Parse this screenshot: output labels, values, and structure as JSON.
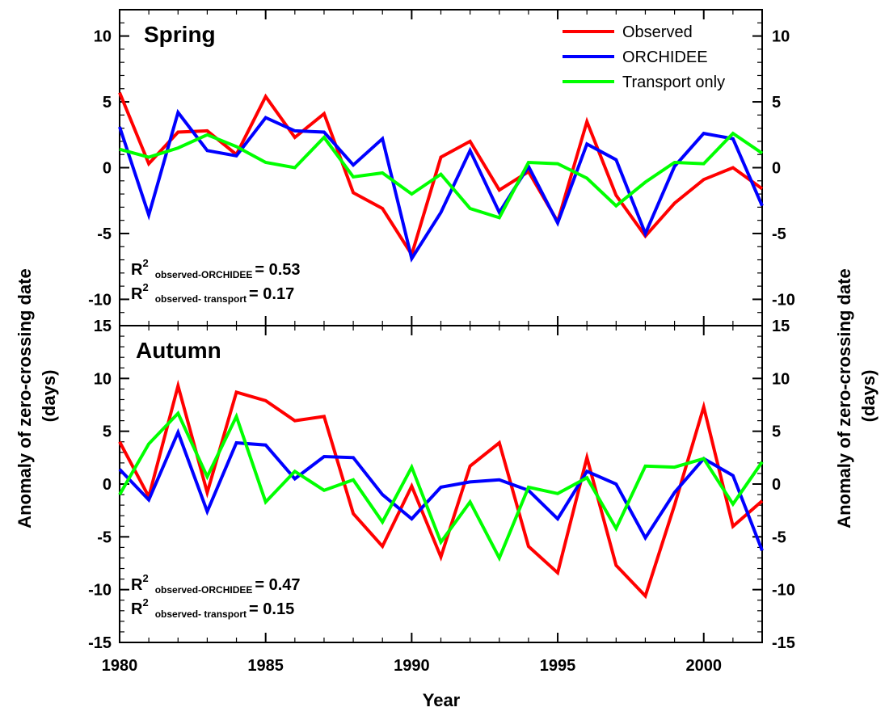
{
  "chart_data": {
    "type": "line",
    "x_label": "Year",
    "y_label_line1": "Anomaly of zero-crossing date",
    "y_label_line2": "(days)",
    "x": [
      1980,
      1981,
      1982,
      1983,
      1984,
      1985,
      1986,
      1987,
      1988,
      1989,
      1990,
      1991,
      1992,
      1993,
      1994,
      1995,
      1996,
      1997,
      1998,
      1999,
      2000,
      2001,
      2002
    ],
    "xlim": [
      1980,
      2002
    ],
    "x_ticks": [
      1980,
      1985,
      1990,
      1995,
      2000
    ],
    "legend": {
      "placement": "top-right",
      "entries": [
        {
          "label": "Observed",
          "color": "#ff0000"
        },
        {
          "label": "ORCHIDEE",
          "color": "#0000ff"
        },
        {
          "label": "Transport only",
          "color": "#00ff00"
        }
      ]
    },
    "panels": [
      {
        "title": "Spring",
        "ylim": [
          -12,
          12
        ],
        "y_ticks": [
          -10,
          -5,
          0,
          5,
          10
        ],
        "annotations": [
          {
            "prefix": "R",
            "sup": "2",
            "sub": "observed-ORCHIDEE",
            "value": "= 0.53"
          },
          {
            "prefix": "R",
            "sup": "2",
            "sub": "observed- transport",
            "value": "= 0.17"
          }
        ],
        "series": [
          {
            "name": "Observed",
            "color": "#ff0000",
            "values": [
              5.7,
              0.3,
              2.7,
              2.8,
              1.0,
              5.4,
              2.3,
              4.1,
              -1.9,
              -3.1,
              -6.6,
              0.8,
              2.0,
              -1.7,
              -0.3,
              -4.1,
              3.5,
              -2.1,
              -5.2,
              -2.7,
              -0.9,
              0.0,
              -1.6
            ]
          },
          {
            "name": "ORCHIDEE",
            "color": "#0000ff",
            "values": [
              3.1,
              -3.6,
              4.2,
              1.3,
              0.9,
              3.8,
              2.8,
              2.7,
              0.2,
              2.2,
              -6.9,
              -3.4,
              1.3,
              -3.4,
              0.1,
              -4.2,
              1.8,
              0.6,
              -5.0,
              0.1,
              2.6,
              2.2,
              -2.9
            ]
          },
          {
            "name": "Transport only",
            "color": "#00ff00",
            "values": [
              1.4,
              0.8,
              1.5,
              2.5,
              1.6,
              0.4,
              0.0,
              2.3,
              -0.7,
              -0.4,
              -2.0,
              -0.5,
              -3.1,
              -3.8,
              0.4,
              0.3,
              -0.8,
              -2.9,
              -1.1,
              0.4,
              0.3,
              2.6,
              1.1
            ]
          }
        ]
      },
      {
        "title": "Autumn",
        "ylim": [
          -15,
          15
        ],
        "y_ticks": [
          -15,
          -10,
          -5,
          0,
          5,
          10,
          15
        ],
        "annotations": [
          {
            "prefix": "R",
            "sup": "2",
            "sub": "observed-ORCHIDEE",
            "value": "= 0.47"
          },
          {
            "prefix": "R",
            "sup": "2",
            "sub": "observed- transport",
            "value": "= 0.15"
          }
        ],
        "series": [
          {
            "name": "Observed",
            "color": "#ff0000",
            "values": [
              4.0,
              -1.2,
              9.3,
              -0.8,
              8.7,
              7.9,
              6.0,
              6.4,
              -2.8,
              -5.9,
              -0.2,
              -6.9,
              1.7,
              3.9,
              -5.9,
              -8.4,
              2.5,
              -7.7,
              -10.6,
              -2.0,
              7.3,
              -4.0,
              -1.6
            ]
          },
          {
            "name": "ORCHIDEE",
            "color": "#0000ff",
            "values": [
              1.4,
              -1.5,
              4.9,
              -2.6,
              3.9,
              3.7,
              0.5,
              2.6,
              2.5,
              -1.0,
              -3.3,
              -0.3,
              0.2,
              0.4,
              -0.6,
              -3.3,
              1.2,
              0.0,
              -5.1,
              -0.8,
              2.4,
              0.8,
              -6.3
            ]
          },
          {
            "name": "Transport only",
            "color": "#00ff00",
            "values": [
              -1.0,
              3.8,
              6.7,
              0.7,
              6.4,
              -1.7,
              1.2,
              -0.6,
              0.4,
              -3.6,
              1.6,
              -5.5,
              -1.7,
              -7.0,
              -0.3,
              -0.9,
              0.6,
              -4.2,
              1.7,
              1.6,
              2.4,
              -1.9,
              2.1
            ]
          }
        ]
      }
    ]
  }
}
